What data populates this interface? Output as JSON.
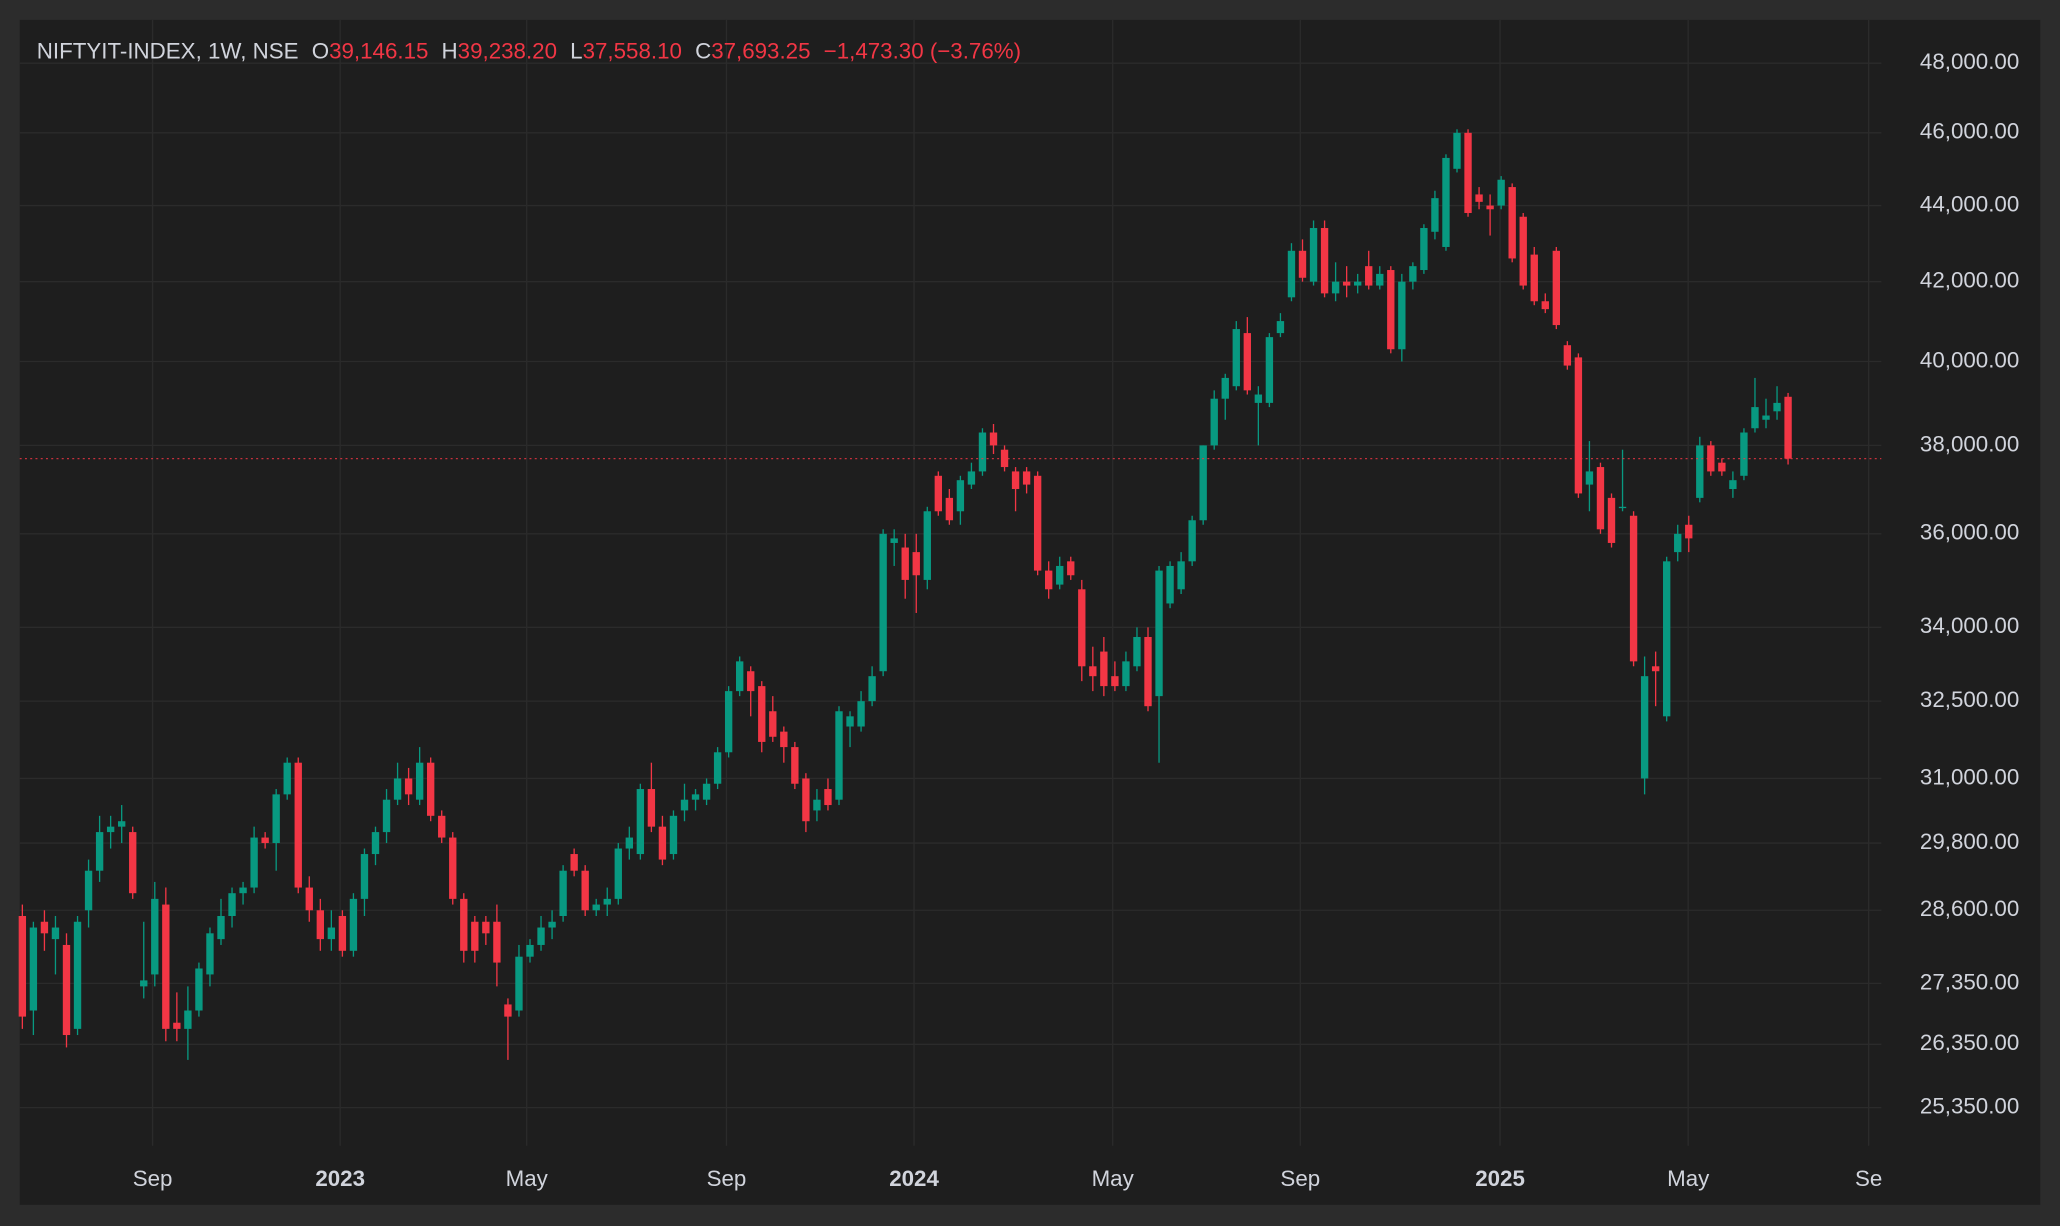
{
  "chart_data": {
    "type": "candlestick",
    "legend": {
      "title": "NIFTYIT-INDEX, 1W, NSE",
      "fields": [
        {
          "label": "O",
          "value": "39,146.15"
        },
        {
          "label": "H",
          "value": "39,238.20"
        },
        {
          "label": "L",
          "value": "37,558.10"
        },
        {
          "label": "C",
          "value": "37,693.25"
        }
      ],
      "change": "−1,473.30 (−3.76%)"
    },
    "up_color": "#089981",
    "down_color": "#f23645",
    "log_scale": true,
    "grid": true,
    "ylim": [
      24766,
      49290
    ],
    "yticks": [
      {
        "value": 48000,
        "label": "48,000.00"
      },
      {
        "value": 46000,
        "label": "46,000.00"
      },
      {
        "value": 44000,
        "label": "44,000.00"
      },
      {
        "value": 42000,
        "label": "42,000.00"
      },
      {
        "value": 40000,
        "label": "40,000.00"
      },
      {
        "value": 38000,
        "label": "38,000.00"
      },
      {
        "value": 36000,
        "label": "36,000.00"
      },
      {
        "value": 34000,
        "label": "34,000.00"
      },
      {
        "value": 32500,
        "label": "32,500.00"
      },
      {
        "value": 31000,
        "label": "31,000.00"
      },
      {
        "value": 29800,
        "label": "29,800.00"
      },
      {
        "value": 28600,
        "label": "28,600.00"
      },
      {
        "value": 27350,
        "label": "27,350.00"
      },
      {
        "value": 26350,
        "label": "26,350.00"
      },
      {
        "value": 25350,
        "label": "25,350.00"
      }
    ],
    "xlim": [
      -0.24,
      168.45
    ],
    "xticks": [
      {
        "value": 11.8,
        "label": "Sep"
      },
      {
        "value": 28.8,
        "label": "2023"
      },
      {
        "value": 45.7,
        "label": "May"
      },
      {
        "value": 63.8,
        "label": "Sep"
      },
      {
        "value": 80.8,
        "label": "2024"
      },
      {
        "value": 98.8,
        "label": "May"
      },
      {
        "value": 115.8,
        "label": "Sep"
      },
      {
        "value": 133.9,
        "label": "2025"
      },
      {
        "value": 150.95,
        "label": "May"
      },
      {
        "value": 167.3,
        "label": "Se"
      }
    ],
    "ohlc": [
      [
        28500,
        28700,
        26600,
        26800
      ],
      [
        26900,
        28400,
        26500,
        28300
      ],
      [
        28400,
        28600,
        27900,
        28200
      ],
      [
        28100,
        28500,
        27500,
        28300
      ],
      [
        28000,
        28200,
        26300,
        26500
      ],
      [
        26600,
        28500,
        26500,
        28400
      ],
      [
        28600,
        29500,
        28300,
        29300
      ],
      [
        29300,
        30300,
        29100,
        30000
      ],
      [
        30000,
        30300,
        29700,
        30100
      ],
      [
        30100,
        30500,
        29800,
        30200
      ],
      [
        30000,
        30100,
        28800,
        28900
      ],
      [
        27300,
        28400,
        27100,
        27400
      ],
      [
        27500,
        29100,
        27300,
        28800
      ],
      [
        28700,
        29000,
        26400,
        26600
      ],
      [
        26700,
        27200,
        26400,
        26600
      ],
      [
        26600,
        27300,
        26100,
        26900
      ],
      [
        26900,
        27700,
        26800,
        27600
      ],
      [
        27500,
        28300,
        27300,
        28200
      ],
      [
        28100,
        28800,
        28000,
        28500
      ],
      [
        28500,
        29000,
        28300,
        28900
      ],
      [
        28900,
        29100,
        28700,
        29000
      ],
      [
        29000,
        30100,
        28900,
        29900
      ],
      [
        29900,
        30000,
        29700,
        29800
      ],
      [
        29800,
        30800,
        29300,
        30700
      ],
      [
        30700,
        31400,
        30600,
        31300
      ],
      [
        31300,
        31400,
        28900,
        29000
      ],
      [
        29000,
        29200,
        28400,
        28600
      ],
      [
        28600,
        28800,
        27900,
        28100
      ],
      [
        28100,
        28600,
        27900,
        28300
      ],
      [
        28500,
        28600,
        27800,
        27900
      ],
      [
        27900,
        28900,
        27800,
        28800
      ],
      [
        28800,
        29700,
        28500,
        29600
      ],
      [
        29600,
        30100,
        29400,
        30000
      ],
      [
        30000,
        30800,
        29800,
        30600
      ],
      [
        30600,
        31300,
        30500,
        31000
      ],
      [
        31000,
        31200,
        30500,
        30700
      ],
      [
        30600,
        31600,
        30500,
        31300
      ],
      [
        31300,
        31400,
        30200,
        30300
      ],
      [
        30300,
        30400,
        29800,
        29900
      ],
      [
        29900,
        30000,
        28700,
        28800
      ],
      [
        28800,
        28900,
        27700,
        27900
      ],
      [
        28400,
        28500,
        27700,
        27900
      ],
      [
        28400,
        28500,
        28000,
        28200
      ],
      [
        28400,
        28700,
        27300,
        27700
      ],
      [
        27000,
        27100,
        26100,
        26800
      ],
      [
        26900,
        28000,
        26800,
        27800
      ],
      [
        27800,
        28100,
        27700,
        28000
      ],
      [
        28000,
        28500,
        27900,
        28300
      ],
      [
        28300,
        28600,
        28100,
        28400
      ],
      [
        28500,
        29400,
        28400,
        29300
      ],
      [
        29600,
        29700,
        29200,
        29300
      ],
      [
        29300,
        29400,
        28500,
        28600
      ],
      [
        28600,
        28800,
        28500,
        28700
      ],
      [
        28700,
        29000,
        28500,
        28800
      ],
      [
        28800,
        29800,
        28700,
        29700
      ],
      [
        29700,
        30100,
        29500,
        29900
      ],
      [
        29600,
        30900,
        29500,
        30800
      ],
      [
        30800,
        31300,
        30000,
        30100
      ],
      [
        30100,
        30300,
        29400,
        29500
      ],
      [
        29600,
        30400,
        29500,
        30300
      ],
      [
        30400,
        30900,
        30200,
        30600
      ],
      [
        30600,
        30800,
        30400,
        30700
      ],
      [
        30600,
        31000,
        30500,
        30900
      ],
      [
        30900,
        31600,
        30800,
        31500
      ],
      [
        31500,
        32800,
        31400,
        32700
      ],
      [
        32700,
        33400,
        32600,
        33300
      ],
      [
        33100,
        33200,
        32200,
        32700
      ],
      [
        32800,
        32900,
        31500,
        31700
      ],
      [
        32300,
        32600,
        31700,
        31800
      ],
      [
        31900,
        32000,
        31300,
        31600
      ],
      [
        31600,
        31700,
        30800,
        30900
      ],
      [
        31000,
        31100,
        30000,
        30200
      ],
      [
        30400,
        30800,
        30200,
        30600
      ],
      [
        30800,
        31000,
        30400,
        30500
      ],
      [
        30600,
        32400,
        30500,
        32300
      ],
      [
        32000,
        32300,
        31600,
        32200
      ],
      [
        32000,
        32700,
        31900,
        32500
      ],
      [
        32500,
        33200,
        32400,
        33000
      ],
      [
        33100,
        36100,
        33000,
        36000
      ],
      [
        35800,
        36100,
        35300,
        35900
      ],
      [
        35700,
        36000,
        34600,
        35000
      ],
      [
        35600,
        36000,
        34300,
        35100
      ],
      [
        35000,
        36600,
        34800,
        36500
      ],
      [
        37300,
        37400,
        36400,
        36500
      ],
      [
        36800,
        37000,
        36200,
        36300
      ],
      [
        36500,
        37300,
        36200,
        37200
      ],
      [
        37100,
        37600,
        37000,
        37400
      ],
      [
        37400,
        38400,
        37300,
        38300
      ],
      [
        38300,
        38500,
        37800,
        38000
      ],
      [
        37900,
        38000,
        37400,
        37500
      ],
      [
        37400,
        37500,
        36500,
        37000
      ],
      [
        37400,
        37500,
        36900,
        37100
      ],
      [
        37300,
        37400,
        35100,
        35200
      ],
      [
        35200,
        35400,
        34600,
        34800
      ],
      [
        34900,
        35500,
        34800,
        35300
      ],
      [
        35400,
        35500,
        35000,
        35100
      ],
      [
        34800,
        35000,
        32900,
        33200
      ],
      [
        33200,
        33600,
        32700,
        33000
      ],
      [
        33500,
        33800,
        32600,
        32800
      ],
      [
        33000,
        33300,
        32700,
        32800
      ],
      [
        32800,
        33500,
        32700,
        33300
      ],
      [
        33200,
        34000,
        33100,
        33800
      ],
      [
        33800,
        34000,
        32300,
        32400
      ],
      [
        32600,
        35300,
        31300,
        35200
      ],
      [
        34500,
        35400,
        34400,
        35300
      ],
      [
        34800,
        35600,
        34700,
        35400
      ],
      [
        35400,
        36400,
        35300,
        36300
      ],
      [
        36300,
        38000,
        36200,
        38000
      ],
      [
        38000,
        39300,
        37900,
        39100
      ],
      [
        39100,
        39700,
        38600,
        39600
      ],
      [
        39400,
        41000,
        39300,
        40800
      ],
      [
        40700,
        41100,
        39200,
        39300
      ],
      [
        39000,
        39400,
        38000,
        39200
      ],
      [
        39000,
        40700,
        38900,
        40600
      ],
      [
        40700,
        41200,
        40600,
        41000
      ],
      [
        41600,
        43000,
        41500,
        42800
      ],
      [
        42800,
        43100,
        42000,
        42100
      ],
      [
        42000,
        43600,
        41900,
        43400
      ],
      [
        43400,
        43600,
        41600,
        41700
      ],
      [
        41700,
        42500,
        41500,
        42000
      ],
      [
        42000,
        42400,
        41600,
        41900
      ],
      [
        41900,
        42200,
        41700,
        42000
      ],
      [
        42400,
        42800,
        41800,
        41900
      ],
      [
        41900,
        42400,
        41800,
        42200
      ],
      [
        42300,
        42400,
        40200,
        40300
      ],
      [
        40300,
        42200,
        40000,
        42000
      ],
      [
        42000,
        42500,
        41800,
        42400
      ],
      [
        42300,
        43500,
        42200,
        43400
      ],
      [
        43300,
        44400,
        43100,
        44200
      ],
      [
        42900,
        45400,
        42800,
        45300
      ],
      [
        45000,
        46100,
        44900,
        46000
      ],
      [
        46000,
        46100,
        43700,
        43800
      ],
      [
        44300,
        44500,
        43900,
        44100
      ],
      [
        44000,
        44300,
        43200,
        43900
      ],
      [
        44000,
        44800,
        43900,
        44700
      ],
      [
        44500,
        44600,
        42500,
        42600
      ],
      [
        43700,
        43800,
        41800,
        41900
      ],
      [
        42700,
        42900,
        41400,
        41500
      ],
      [
        41500,
        41700,
        41200,
        41300
      ],
      [
        42800,
        42900,
        40800,
        40900
      ],
      [
        40400,
        40500,
        39800,
        39900
      ],
      [
        40100,
        40200,
        36800,
        36900
      ],
      [
        37100,
        38100,
        36500,
        37400
      ],
      [
        37500,
        37600,
        36000,
        36100
      ],
      [
        36800,
        36900,
        35700,
        35800
      ],
      [
        36600,
        37900,
        36500,
        36600
      ],
      [
        36400,
        36500,
        33200,
        33300
      ],
      [
        31000,
        33400,
        30700,
        33000
      ],
      [
        33200,
        33500,
        32400,
        33100
      ],
      [
        32200,
        35500,
        32100,
        35400
      ],
      [
        35600,
        36200,
        35400,
        36000
      ],
      [
        36200,
        36400,
        35600,
        35900
      ],
      [
        36800,
        38200,
        36700,
        38000
      ],
      [
        38000,
        38100,
        37300,
        37400
      ],
      [
        37600,
        37700,
        37300,
        37400
      ],
      [
        37000,
        37400,
        36800,
        37200
      ],
      [
        37300,
        38400,
        37200,
        38300
      ],
      [
        38400,
        39600,
        38300,
        38900
      ],
      [
        38600,
        39100,
        38400,
        38700
      ],
      [
        38800,
        39400,
        38600,
        39000
      ],
      [
        39146.15,
        39238.2,
        37558.1,
        37693.25
      ]
    ]
  }
}
